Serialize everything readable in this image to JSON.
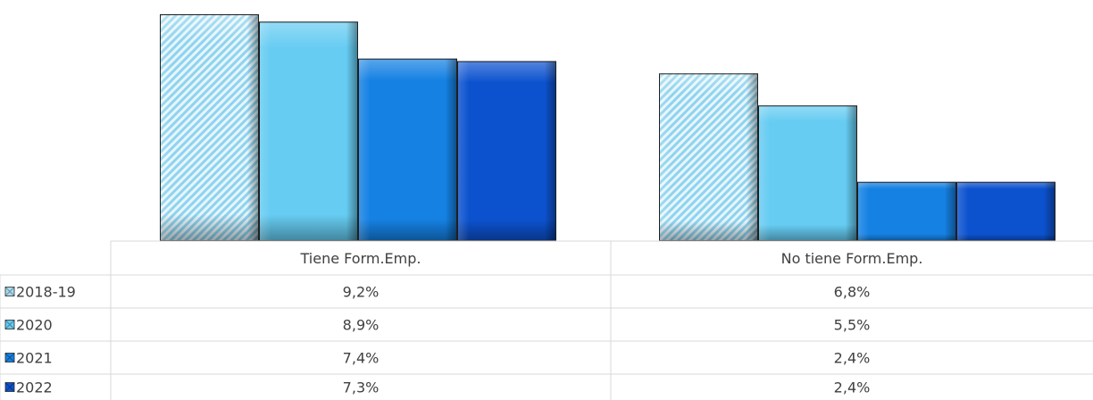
{
  "chart_data": {
    "type": "bar",
    "categories": [
      "Tiene Form.Emp.",
      "No tiene Form.Emp."
    ],
    "series": [
      {
        "name": "2018-19",
        "values": [
          9.2,
          6.8
        ],
        "labels": [
          "9,2%",
          "6,8%"
        ],
        "color": "#b9e6f5",
        "pattern": "hatched"
      },
      {
        "name": "2020",
        "values": [
          8.9,
          5.5
        ],
        "labels": [
          "8,9%",
          "5,5%"
        ],
        "color": "#66ccf2"
      },
      {
        "name": "2021",
        "values": [
          7.4,
          2.4
        ],
        "labels": [
          "7,4%",
          "2,4%"
        ],
        "color": "#1581e3"
      },
      {
        "name": "2022",
        "values": [
          7.3,
          2.4
        ],
        "labels": [
          "7,3%",
          "2,4%"
        ],
        "color": "#0c52cf"
      }
    ],
    "ylim": [
      0,
      9.2
    ],
    "legend": "data-table-left",
    "grid": false
  }
}
